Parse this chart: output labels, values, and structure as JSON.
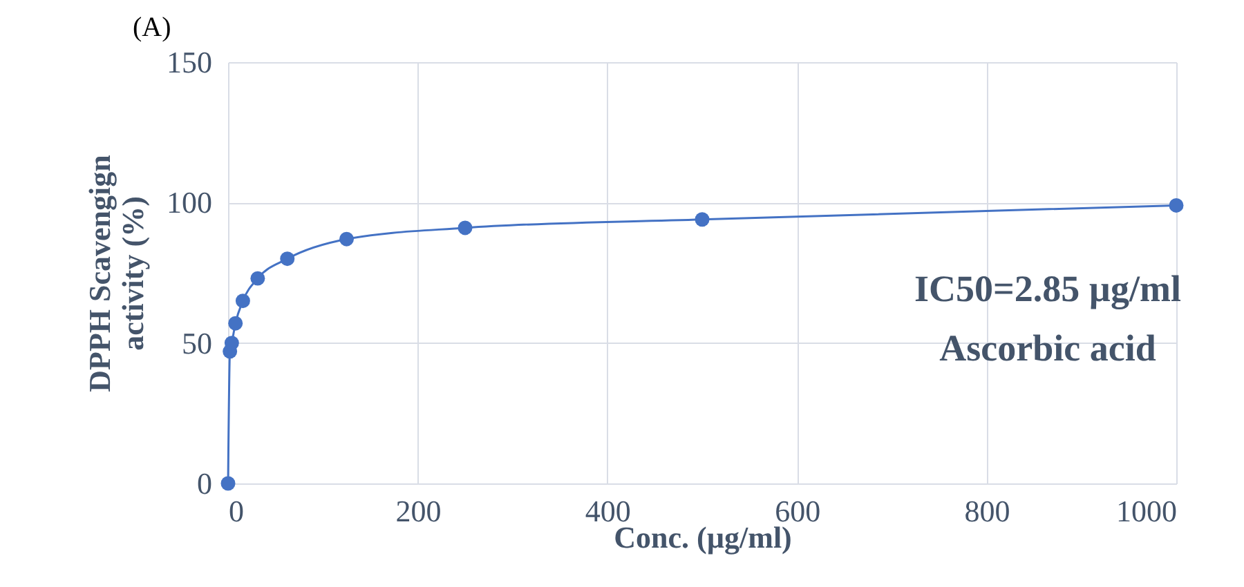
{
  "chart_data": {
    "type": "line",
    "title": "(A)",
    "xlabel": "Conc. (µg/ml)",
    "ylabel": "DPPH Scavengign\nactivity  (%)",
    "x": [
      0,
      1.95,
      3.9,
      7.8,
      15.6,
      31.25,
      62.5,
      125,
      250,
      500,
      1000
    ],
    "series": [
      {
        "color": "#4472c4",
        "values": [
          0,
          47,
          50,
          57,
          65,
          73,
          80,
          87,
          91,
          94,
          99
        ]
      }
    ],
    "xlim": [
      0,
      1000
    ],
    "xticks": [
      0,
      200,
      400,
      600,
      800,
      1000
    ],
    "ylim": [
      0,
      150
    ],
    "yticks": [
      0,
      50,
      100,
      150
    ],
    "grid": true,
    "marker": "circle",
    "line_style": "solid",
    "annotations": [
      "IC50=2.85 µg/ml",
      "Ascorbic acid"
    ]
  }
}
